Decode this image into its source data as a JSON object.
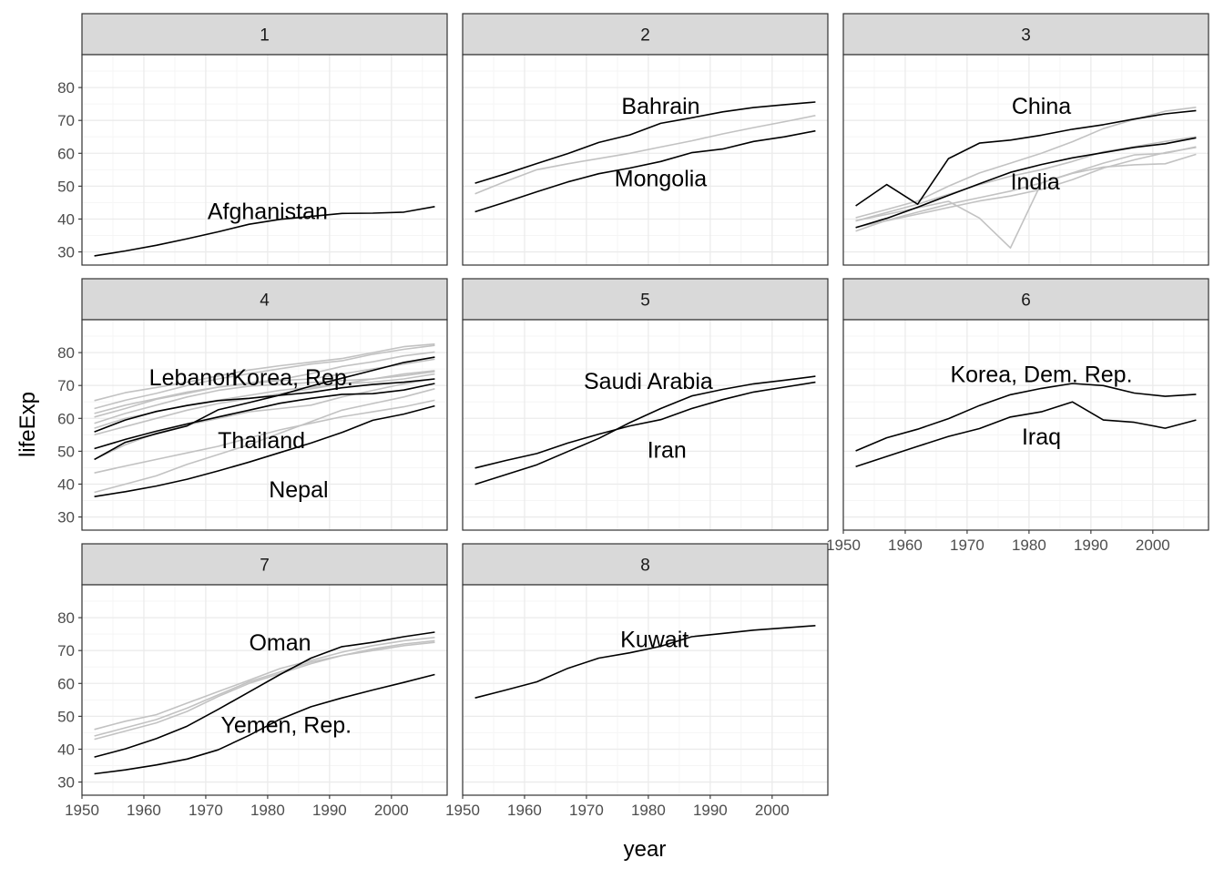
{
  "chart_data": {
    "type": "line",
    "facet": "small multiples (4 columns x 3 rows... 3 columns layout)",
    "xlabel": "year",
    "ylabel": "lifeExp",
    "xlim": [
      1950,
      2009
    ],
    "ylim": [
      26,
      90
    ],
    "x_ticks": [
      1950,
      1960,
      1970,
      1980,
      1990,
      2000
    ],
    "y_ticks": [
      30,
      40,
      50,
      60,
      70,
      80
    ],
    "grid": true,
    "colors": {
      "highlight": "#000000",
      "background": "#c2c2c2",
      "strip": "#d9d9d9",
      "border": "#333333",
      "grid_major": "#ebebeb",
      "grid_minor": "#f5f5f5"
    },
    "years": [
      1952,
      1957,
      1962,
      1967,
      1972,
      1977,
      1982,
      1987,
      1992,
      1997,
      2002,
      2007
    ],
    "panels": [
      {
        "strip": "1",
        "series": [
          {
            "name": "Afghanistan",
            "highlight": true,
            "values": [
              28.8,
              30.3,
              32.0,
              34.0,
              36.1,
              38.4,
              39.9,
              40.8,
              41.7,
              41.8,
              42.1,
              43.8
            ]
          }
        ],
        "labels": [
          {
            "text": "Afghanistan",
            "x": 1980,
            "y": 40
          }
        ]
      },
      {
        "strip": "2",
        "series": [
          {
            "name": "bg-2a",
            "highlight": false,
            "values": [
              47.7,
              51.5,
              55.0,
              56.8,
              58.4,
              60.0,
              61.9,
              63.8,
              65.9,
              67.8,
              69.6,
              71.5
            ]
          },
          {
            "name": "Bahrain",
            "highlight": true,
            "values": [
              50.9,
              53.8,
              56.9,
              59.9,
              63.3,
              65.6,
              69.1,
              70.8,
              72.6,
              73.9,
              74.8,
              75.6
            ]
          },
          {
            "name": "Mongolia",
            "highlight": true,
            "values": [
              42.2,
              45.2,
              48.3,
              51.3,
              53.8,
              55.5,
              57.5,
              60.2,
              61.3,
              63.6,
              65.0,
              66.8
            ]
          }
        ],
        "labels": [
          {
            "text": "Bahrain",
            "x": 1982,
            "y": 72
          },
          {
            "text": "Mongolia",
            "x": 1982,
            "y": 50
          }
        ]
      },
      {
        "strip": "3",
        "series": [
          {
            "name": "bg-3a",
            "highlight": false,
            "values": [
              40.4,
              42.9,
              45.5,
              50.0,
              54.0,
              57.0,
              60.0,
              63.5,
              67.5,
              70.3,
              72.8,
              74.0
            ]
          },
          {
            "name": "bg-3b",
            "highlight": false,
            "values": [
              39.4,
              42.0,
              44.5,
              47.5,
              50.5,
              53.0,
              55.0,
              57.5,
              60.5,
              62.0,
              63.6,
              65.0
            ]
          },
          {
            "name": "bg-3c",
            "highlight": false,
            "values": [
              39.5,
              41.4,
              43.4,
              45.4,
              40.3,
              31.2,
              51.0,
              53.9,
              55.8,
              56.5,
              56.8,
              59.7
            ]
          },
          {
            "name": "bg-3d",
            "highlight": false,
            "values": [
              36.3,
              39.6,
              42.1,
              44.5,
              46.5,
              48.5,
              51.0,
              54.0,
              57.0,
              59.5,
              60.0,
              62.0
            ]
          },
          {
            "name": "bg-3e",
            "highlight": false,
            "values": [
              37.5,
              39.5,
              41.5,
              43.5,
              45.5,
              47.0,
              49.0,
              52.0,
              55.5,
              58.0,
              60.2,
              61.8
            ]
          },
          {
            "name": "China",
            "highlight": true,
            "values": [
              44.0,
              50.5,
              44.5,
              58.4,
              63.1,
              64.0,
              65.5,
              67.3,
              68.7,
              70.4,
              72.0,
              73.0
            ]
          },
          {
            "name": "India",
            "highlight": true,
            "values": [
              37.4,
              40.2,
              43.6,
              47.2,
              50.7,
              54.2,
              56.6,
              58.6,
              60.2,
              61.8,
              62.9,
              64.7
            ]
          }
        ],
        "labels": [
          {
            "text": "China",
            "x": 1982,
            "y": 72
          },
          {
            "text": "India",
            "x": 1981,
            "y": 49
          }
        ]
      },
      {
        "strip": "4",
        "series": [
          {
            "name": "bg-4a",
            "highlight": false,
            "values": [
              65.4,
              67.8,
              69.4,
              71.0,
              72.9,
              74.7,
              76.0,
              77.1,
              78.2,
              80.0,
              81.8,
              82.6
            ]
          },
          {
            "name": "bg-4b",
            "highlight": false,
            "values": [
              63.0,
              65.5,
              67.6,
              70.0,
              72.0,
              73.6,
              75.1,
              76.5,
              77.5,
              79.5,
              81.0,
              82.2
            ]
          },
          {
            "name": "bg-4c",
            "highlight": false,
            "values": [
              60.4,
              63.0,
              65.8,
              67.6,
              69.5,
              70.8,
              71.8,
              73.6,
              75.8,
              77.2,
              79.0,
              80.2
            ]
          },
          {
            "name": "bg-4d",
            "highlight": false,
            "values": [
              61.5,
              64.0,
              66.0,
              68.0,
              69.5,
              70.5,
              71.5,
              72.0,
              73.5,
              75.0,
              76.5,
              78.0
            ]
          },
          {
            "name": "bg-4e",
            "highlight": false,
            "values": [
              57.0,
              60.0,
              62.0,
              64.0,
              65.5,
              67.0,
              68.5,
              69.5,
              70.5,
              71.0,
              72.0,
              73.5
            ]
          },
          {
            "name": "bg-4f",
            "highlight": false,
            "values": [
              58.5,
              61.5,
              64.0,
              66.5,
              68.5,
              69.8,
              70.3,
              70.9,
              71.5,
              72.0,
              73.0,
              74.2
            ]
          },
          {
            "name": "bg-4g",
            "highlight": false,
            "values": [
              55.0,
              57.5,
              60.0,
              62.5,
              64.5,
              66.0,
              67.5,
              69.0,
              70.5,
              72.0,
              73.5,
              74.5
            ]
          },
          {
            "name": "bg-4h",
            "highlight": false,
            "values": [
              43.4,
              45.5,
              47.5,
              49.5,
              51.5,
              54.0,
              56.5,
              58.5,
              60.5,
              62.0,
              63.5,
              65.5
            ]
          },
          {
            "name": "bg-4i",
            "highlight": false,
            "values": [
              37.5,
              40.0,
              42.5,
              46.0,
              49.0,
              52.0,
              55.5,
              59.0,
              62.5,
              64.5,
              66.5,
              69.0
            ]
          },
          {
            "name": "bg-4j",
            "highlight": false,
            "values": [
              47.5,
              52.0,
              55.5,
              58.0,
              60.0,
              62.0,
              63.0,
              64.0,
              66.5,
              68.5,
              70.5,
              72.0
            ]
          },
          {
            "name": "Korea, Rep.",
            "highlight": true,
            "values": [
              47.5,
              52.7,
              55.3,
              57.7,
              62.6,
              64.8,
              67.1,
              69.8,
              72.2,
              74.6,
              77.0,
              78.6
            ]
          },
          {
            "name": "Lebanon",
            "highlight": true,
            "values": [
              55.9,
              59.5,
              62.1,
              63.9,
              65.4,
              66.1,
              67.0,
              67.9,
              69.3,
              70.3,
              71.0,
              72.0
            ]
          },
          {
            "name": "Thailand",
            "highlight": true,
            "values": [
              50.8,
              53.6,
              56.1,
              58.3,
              60.4,
              62.5,
              64.6,
              66.1,
              67.3,
              67.5,
              68.6,
              70.6
            ]
          },
          {
            "name": "Nepal",
            "highlight": true,
            "values": [
              36.2,
              37.7,
              39.4,
              41.5,
              44.0,
              46.7,
              49.6,
              52.5,
              55.7,
              59.4,
              61.3,
              63.8
            ]
          }
        ],
        "labels": [
          {
            "text": "Lebanon",
            "x": 1968,
            "y": 70
          },
          {
            "text": "Korea, Rep.",
            "x": 1984,
            "y": 70
          },
          {
            "text": "Thailand",
            "x": 1979,
            "y": 51
          },
          {
            "text": "Nepal",
            "x": 1985,
            "y": 36
          }
        ]
      },
      {
        "strip": "5",
        "series": [
          {
            "name": "Saudi Arabia",
            "highlight": true,
            "values": [
              39.9,
              42.9,
              45.9,
              49.9,
              53.9,
              58.7,
              63.0,
              66.8,
              68.8,
              70.5,
              71.6,
              72.8
            ]
          },
          {
            "name": "Iran",
            "highlight": true,
            "values": [
              44.9,
              47.2,
              49.3,
              52.5,
              55.2,
              57.7,
              59.6,
              63.0,
              65.7,
              68.0,
              69.5,
              71.0
            ]
          }
        ],
        "labels": [
          {
            "text": "Saudi Arabia",
            "x": 1980,
            "y": 69
          },
          {
            "text": "Iran",
            "x": 1983,
            "y": 48
          }
        ]
      },
      {
        "strip": "6",
        "series": [
          {
            "name": "Korea, Dem. Rep.",
            "highlight": true,
            "values": [
              50.1,
              54.1,
              56.7,
              59.9,
              63.9,
              67.2,
              69.1,
              70.6,
              69.98,
              67.7,
              66.7,
              67.3
            ]
          },
          {
            "name": "Iraq",
            "highlight": true,
            "values": [
              45.3,
              48.4,
              51.5,
              54.5,
              56.9,
              60.4,
              62.0,
              65.0,
              59.5,
              58.8,
              57.0,
              59.5
            ]
          }
        ],
        "labels": [
          {
            "text": "Korea, Dem. Rep.",
            "x": 1982,
            "y": 71
          },
          {
            "text": "Iraq",
            "x": 1982,
            "y": 52
          }
        ]
      },
      {
        "strip": "7",
        "series": [
          {
            "name": "bg-7a",
            "highlight": false,
            "values": [
              46.0,
              48.5,
              50.5,
              54.0,
              57.5,
              61.0,
              64.5,
              67.0,
              69.5,
              71.5,
              73.0,
              74.0
            ]
          },
          {
            "name": "bg-7b",
            "highlight": false,
            "values": [
              43.0,
              45.5,
              48.0,
              51.5,
              56.0,
              60.0,
              63.0,
              66.0,
              68.5,
              70.5,
              72.0,
              73.0
            ]
          },
          {
            "name": "bg-7c",
            "highlight": false,
            "values": [
              44.0,
              46.5,
              49.0,
              52.5,
              56.5,
              60.5,
              63.5,
              66.5,
              68.5,
              70.0,
              71.5,
              72.5
            ]
          },
          {
            "name": "Oman",
            "highlight": true,
            "values": [
              37.6,
              40.1,
              43.2,
              47.0,
              52.1,
              57.4,
              62.7,
              67.7,
              71.2,
              72.5,
              74.2,
              75.6
            ]
          },
          {
            "name": "Yemen, Rep.",
            "highlight": true,
            "values": [
              32.5,
              33.7,
              35.2,
              37.0,
              39.8,
              44.2,
              49.1,
              52.9,
              55.6,
              58.0,
              60.3,
              62.7
            ]
          }
        ],
        "labels": [
          {
            "text": "Oman",
            "x": 1982,
            "y": 70
          },
          {
            "text": "Yemen, Rep.",
            "x": 1983,
            "y": 45
          }
        ]
      },
      {
        "strip": "8",
        "series": [
          {
            "name": "Kuwait",
            "highlight": true,
            "values": [
              55.6,
              58.0,
              60.5,
              64.6,
              67.7,
              69.3,
              71.3,
              74.2,
              75.2,
              76.2,
              76.9,
              77.6
            ]
          }
        ],
        "labels": [
          {
            "text": "Kuwait",
            "x": 1981,
            "y": 71
          }
        ]
      }
    ]
  }
}
